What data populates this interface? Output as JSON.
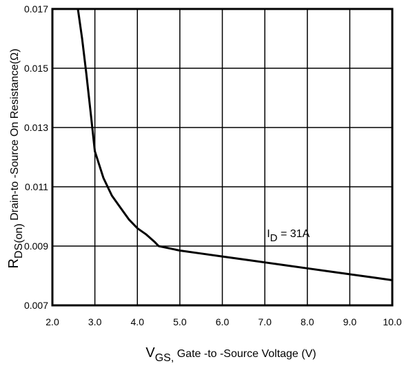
{
  "chart_data": {
    "type": "line",
    "xlabel": {
      "main": "V",
      "sub": "GS,",
      "rest": " Gate -to -Source Voltage  (V)"
    },
    "ylabel": {
      "main": "R",
      "sub": "DS(on)",
      "rest": " Drain-to -Source On Resistance(Ω)"
    },
    "xlim": [
      2.0,
      10.0
    ],
    "ylim": [
      0.007,
      0.017
    ],
    "xticks": [
      "2.0",
      "3.0",
      "4.0",
      "5.0",
      "6.0",
      "7.0",
      "8.0",
      "9.0",
      "10.0"
    ],
    "yticks": [
      "0.007",
      "0.009",
      "0.011",
      "0.013",
      "0.015",
      "0.017"
    ],
    "grid": true,
    "series": [
      {
        "color": "#000000",
        "x": [
          2.6,
          2.7,
          2.8,
          2.9,
          3.0,
          3.2,
          3.4,
          3.6,
          3.8,
          4.0,
          4.2,
          4.4,
          4.5,
          5.0,
          5.5,
          6.0,
          6.5,
          7.0,
          7.5,
          8.0,
          8.5,
          9.0,
          9.5,
          10.0
        ],
        "y": [
          0.017,
          0.016,
          0.0148,
          0.0135,
          0.0122,
          0.0113,
          0.0107,
          0.0103,
          0.0099,
          0.0096,
          0.0094,
          0.00915,
          0.009,
          0.00885,
          0.00875,
          0.00865,
          0.00855,
          0.00845,
          0.00835,
          0.00825,
          0.00815,
          0.00805,
          0.00795,
          0.00785
        ]
      }
    ],
    "annotation": {
      "main": "I",
      "sub": "D",
      "rest": " = 31A",
      "x": 7.05,
      "y": 0.0093
    }
  }
}
